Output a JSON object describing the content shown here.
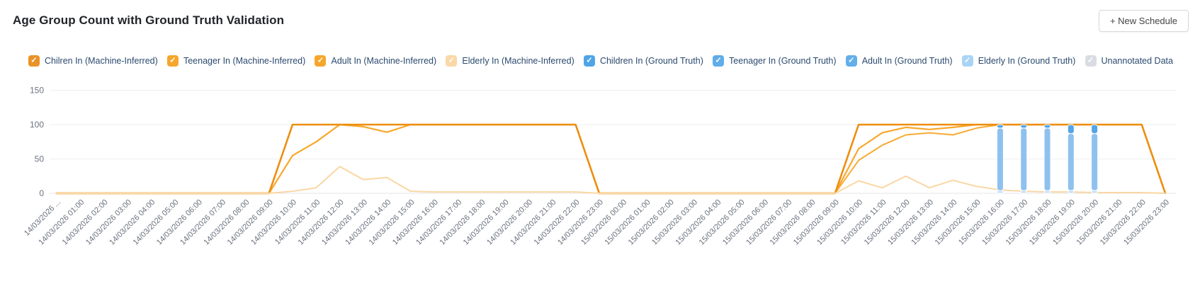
{
  "header": {
    "title": "Age Group Count with Ground Truth Validation",
    "new_schedule_label": "+ New Schedule"
  },
  "legend": {
    "items": [
      {
        "label": "Chilren In (Machine-Inferred)",
        "color": "#EA9227",
        "checked": true
      },
      {
        "label": "Teenager In (Machine-Inferred)",
        "color": "#F6A62C",
        "checked": true
      },
      {
        "label": "Adult In (Machine-Inferred)",
        "color": "#F6A62C",
        "checked": true
      },
      {
        "label": "Elderly In (Machine-Inferred)",
        "color": "#FAD8A7",
        "checked": true
      },
      {
        "label": "Children In (Ground Truth)",
        "color": "#4FA5E7",
        "checked": true
      },
      {
        "label": "Teenager In (Ground Truth)",
        "color": "#5FADE9",
        "checked": true
      },
      {
        "label": "Adult In (Ground Truth)",
        "color": "#63AFEA",
        "checked": true
      },
      {
        "label": "Elderly In (Ground Truth)",
        "color": "#A9D4F5",
        "checked": true
      },
      {
        "label": "Unannotated Data",
        "color": "#D9DDE2",
        "checked": true
      }
    ]
  },
  "chart_data": {
    "type": "line",
    "title": "Age Group Count with Ground Truth Validation",
    "xlabel": "",
    "ylabel": "",
    "ylim": [
      0,
      150
    ],
    "yticks": [
      0,
      50,
      100,
      150
    ],
    "grid": "horizontal-only",
    "legend_position": "top",
    "x": [
      "14/03/2026 ...",
      "14/03/2026 01:00",
      "14/03/2026 02:00",
      "14/03/2026 03:00",
      "14/03/2026 04:00",
      "14/03/2026 05:00",
      "14/03/2026 06:00",
      "14/03/2026 07:00",
      "14/03/2026 08:00",
      "14/03/2026 09:00",
      "14/03/2026 10:00",
      "14/03/2026 11:00",
      "14/03/2026 12:00",
      "14/03/2026 13:00",
      "14/03/2026 14:00",
      "14/03/2026 15:00",
      "14/03/2026 16:00",
      "14/03/2026 17:00",
      "14/03/2026 18:00",
      "14/03/2026 19:00",
      "14/03/2026 20:00",
      "14/03/2026 21:00",
      "14/03/2026 22:00",
      "14/03/2026 23:00",
      "15/03/2026 00:00",
      "15/03/2026 01:00",
      "15/03/2026 02:00",
      "15/03/2026 03:00",
      "15/03/2026 04:00",
      "15/03/2026 05:00",
      "15/03/2026 06:00",
      "15/03/2026 07:00",
      "15/03/2026 08:00",
      "15/03/2026 09:00",
      "15/03/2026 10:00",
      "15/03/2026 11:00",
      "15/03/2026 12:00",
      "15/03/2026 13:00",
      "15/03/2026 14:00",
      "15/03/2026 15:00",
      "15/03/2026 16:00",
      "15/03/2026 17:00",
      "15/03/2026 18:00",
      "15/03/2026 19:00",
      "15/03/2026 20:00",
      "15/03/2026 21:00",
      "15/03/2026 22:00",
      "15/03/2026 23:00"
    ],
    "series": [
      {
        "name": "Elderly In (Ground Truth)",
        "type": "bar",
        "color": "#C3DFF8",
        "values": [
          0,
          0,
          0,
          0,
          0,
          0,
          0,
          0,
          0,
          0,
          0,
          0,
          0,
          0,
          0,
          0,
          0,
          0,
          0,
          0,
          0,
          0,
          0,
          0,
          0,
          0,
          0,
          0,
          0,
          0,
          0,
          0,
          0,
          0,
          0,
          0,
          0,
          0,
          0,
          0,
          4,
          4,
          4,
          4,
          4,
          0,
          0,
          0
        ]
      },
      {
        "name": "Adult In (Ground Truth)",
        "type": "bar",
        "color": "#8FC1EF",
        "values": [
          0,
          0,
          0,
          0,
          0,
          0,
          0,
          0,
          0,
          0,
          0,
          0,
          0,
          0,
          0,
          0,
          0,
          0,
          0,
          0,
          0,
          0,
          0,
          0,
          0,
          0,
          0,
          0,
          0,
          0,
          0,
          0,
          0,
          0,
          0,
          0,
          0,
          0,
          0,
          0,
          91,
          91,
          91,
          83,
          83,
          0,
          0,
          0
        ]
      },
      {
        "name": "Teenager In (Ground Truth)",
        "type": "bar",
        "color": "#6FB1EA",
        "values": [
          0,
          0,
          0,
          0,
          0,
          0,
          0,
          0,
          0,
          0,
          0,
          0,
          0,
          0,
          0,
          0,
          0,
          0,
          0,
          0,
          0,
          0,
          0,
          0,
          0,
          0,
          0,
          0,
          0,
          0,
          0,
          0,
          0,
          0,
          0,
          0,
          0,
          0,
          0,
          0,
          0,
          0,
          0,
          0,
          0,
          0,
          0,
          0
        ]
      },
      {
        "name": "Children In (Ground Truth)",
        "type": "bar",
        "color": "#55A5E6",
        "values": [
          0,
          0,
          0,
          0,
          0,
          0,
          0,
          0,
          0,
          0,
          0,
          0,
          0,
          0,
          0,
          0,
          0,
          0,
          0,
          0,
          0,
          0,
          0,
          0,
          0,
          0,
          0,
          0,
          0,
          0,
          0,
          0,
          0,
          0,
          0,
          0,
          0,
          0,
          0,
          0,
          5,
          5,
          5,
          13,
          13,
          0,
          0,
          0
        ]
      },
      {
        "name": "Adult In (Machine-Inferred)",
        "type": "line",
        "color": "#F7AC35",
        "width": 2,
        "values": [
          0,
          0,
          0,
          0,
          0,
          0,
          0,
          0,
          0,
          0,
          100,
          100,
          100,
          100,
          100,
          100,
          100,
          100,
          100,
          100,
          100,
          100,
          100,
          0,
          0,
          0,
          0,
          0,
          0,
          0,
          0,
          0,
          0,
          0,
          48,
          70,
          85,
          88,
          85,
          95,
          100,
          100,
          100,
          100,
          100,
          100,
          100,
          0
        ]
      },
      {
        "name": "Teenager In (Machine-Inferred)",
        "type": "line",
        "color": "#F9A72B",
        "width": 2.2,
        "values": [
          0,
          0,
          0,
          0,
          0,
          0,
          0,
          0,
          0,
          0,
          55,
          75,
          100,
          97,
          89,
          100,
          100,
          100,
          100,
          100,
          100,
          100,
          100,
          0,
          0,
          0,
          0,
          0,
          0,
          0,
          0,
          0,
          0,
          0,
          65,
          88,
          96,
          93,
          96,
          100,
          100,
          100,
          100,
          100,
          100,
          100,
          100,
          0
        ]
      },
      {
        "name": "Chilren In (Machine-Inferred)",
        "type": "line",
        "color": "#ED8E0F",
        "width": 2.6,
        "values": [
          0,
          0,
          0,
          0,
          0,
          0,
          0,
          0,
          0,
          0,
          100,
          100,
          100,
          100,
          100,
          100,
          100,
          100,
          100,
          100,
          100,
          100,
          100,
          0,
          0,
          0,
          0,
          0,
          0,
          0,
          0,
          0,
          0,
          0,
          100,
          100,
          100,
          100,
          100,
          100,
          100,
          100,
          100,
          100,
          100,
          100,
          100,
          0
        ]
      },
      {
        "name": "Elderly In (Machine-Inferred)",
        "type": "line",
        "color": "#FAD7A4",
        "width": 2,
        "values": [
          0,
          0,
          0,
          0,
          0,
          0,
          0,
          0,
          0,
          0,
          3,
          8,
          39,
          20,
          23,
          3,
          2,
          2,
          2,
          2,
          2,
          2,
          2,
          0,
          0,
          0,
          0,
          0,
          0,
          0,
          0,
          0,
          0,
          0,
          18,
          8,
          25,
          8,
          19,
          10,
          5,
          3,
          2,
          2,
          1,
          1,
          1,
          0
        ]
      }
    ]
  }
}
